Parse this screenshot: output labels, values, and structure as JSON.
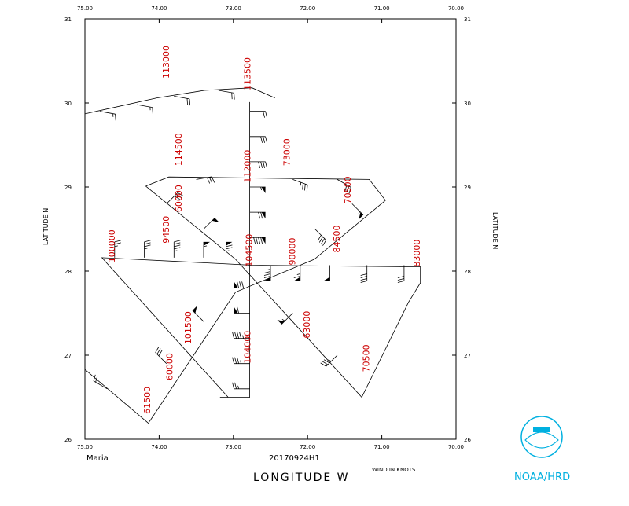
{
  "chart_data": {
    "type": "wind-barbs",
    "title": "Maria",
    "subtitle": "20170924H1",
    "xlabel": "LONGITUDE  W",
    "ylabel": "LATITUDE  N",
    "units_label": "WIND IN KNOTS",
    "credit": "NOAA/HRD",
    "color": "#000000",
    "label_color": "#cc0000",
    "credit_color": "#00b0e0",
    "xlim": [
      75,
      70
    ],
    "ylim": [
      26,
      31
    ],
    "xticks": [
      {
        "value": 75,
        "label": "75.00"
      },
      {
        "value": 74,
        "label": "74.00"
      },
      {
        "value": 73,
        "label": "73.00"
      },
      {
        "value": 72,
        "label": "72.00"
      },
      {
        "value": 71,
        "label": "71.00"
      },
      {
        "value": 70,
        "label": "70.00"
      }
    ],
    "yticks": [
      26,
      27,
      28,
      29,
      30,
      31
    ],
    "track": [
      [
        75.0,
        29.87
      ],
      [
        74.03,
        30.06
      ],
      [
        73.39,
        30.15
      ],
      [
        72.75,
        30.18
      ],
      [
        72.44,
        30.06
      ],
      null,
      [
        72.78,
        30.01
      ],
      [
        72.78,
        26.5
      ],
      [
        73.18,
        26.5
      ],
      null,
      [
        74.18,
        29.01
      ],
      [
        73.87,
        29.12
      ],
      [
        71.17,
        29.09
      ],
      [
        70.95,
        28.84
      ],
      null,
      [
        74.18,
        29.01
      ],
      [
        72.97,
        28.14
      ],
      [
        71.27,
        26.5
      ],
      [
        70.64,
        27.63
      ],
      [
        70.48,
        27.86
      ],
      [
        70.48,
        28.05
      ],
      [
        72.75,
        28.07
      ],
      [
        74.77,
        28.16
      ],
      [
        74.66,
        28.05
      ],
      [
        73.07,
        26.5
      ],
      null,
      [
        74.13,
        26.21
      ],
      [
        72.97,
        27.75
      ],
      [
        71.91,
        28.14
      ],
      [
        70.95,
        28.84
      ],
      null,
      [
        75.0,
        26.83
      ],
      [
        74.13,
        26.18
      ]
    ],
    "barbs": [
      [
        72.78,
        29.9,
        90,
        20
      ],
      [
        72.78,
        29.6,
        90,
        30
      ],
      [
        72.78,
        29.3,
        90,
        40
      ],
      [
        72.78,
        29.0,
        90,
        55
      ],
      [
        72.78,
        28.7,
        90,
        70
      ],
      [
        72.78,
        28.4,
        90,
        90
      ],
      [
        72.78,
        26.6,
        270,
        25
      ],
      [
        72.78,
        26.9,
        270,
        35
      ],
      [
        72.78,
        27.2,
        270,
        45
      ],
      [
        72.78,
        27.5,
        270,
        60
      ],
      [
        72.78,
        27.8,
        270,
        80
      ],
      [
        72.5,
        28.07,
        180,
        85
      ],
      [
        72.1,
        28.07,
        180,
        65
      ],
      [
        71.7,
        28.07,
        180,
        50
      ],
      [
        71.2,
        28.07,
        180,
        40
      ],
      [
        70.7,
        28.07,
        180,
        30
      ],
      [
        74.6,
        28.16,
        0,
        25
      ],
      [
        74.2,
        28.16,
        0,
        35
      ],
      [
        73.8,
        28.16,
        0,
        45
      ],
      [
        73.4,
        28.16,
        0,
        55
      ],
      [
        73.1,
        28.16,
        0,
        75
      ],
      [
        74.8,
        29.9,
        100,
        15
      ],
      [
        74.3,
        29.98,
        100,
        15
      ],
      [
        73.8,
        30.08,
        100,
        20
      ],
      [
        73.2,
        30.15,
        100,
        20
      ],
      [
        71.9,
        28.5,
        135,
        40
      ],
      [
        71.4,
        28.8,
        135,
        55
      ],
      [
        72.2,
        27.5,
        225,
        55
      ],
      [
        71.6,
        27.0,
        225,
        35
      ],
      [
        73.4,
        27.4,
        315,
        50
      ],
      [
        73.9,
        26.9,
        315,
        30
      ],
      [
        74.7,
        26.6,
        300,
        20
      ],
      [
        73.4,
        28.5,
        45,
        50
      ],
      [
        73.9,
        28.8,
        45,
        30
      ],
      [
        73.5,
        29.09,
        80,
        30
      ],
      [
        72.2,
        29.09,
        110,
        35
      ],
      [
        71.6,
        29.09,
        120,
        30
      ]
    ],
    "time_labels": [
      {
        "text": "113000",
        "lon": 73.9,
        "lat": 30.29
      },
      {
        "text": "113500",
        "lon": 72.8,
        "lat": 30.15
      },
      {
        "text": "114500",
        "lon": 73.73,
        "lat": 29.25
      },
      {
        "text": "73000",
        "lon": 72.27,
        "lat": 29.25
      },
      {
        "text": "112000",
        "lon": 72.8,
        "lat": 29.05
      },
      {
        "text": "70500",
        "lon": 71.45,
        "lat": 28.8
      },
      {
        "text": "60000",
        "lon": 73.73,
        "lat": 28.7
      },
      {
        "text": "94500",
        "lon": 73.9,
        "lat": 28.33
      },
      {
        "text": "100000",
        "lon": 74.63,
        "lat": 28.1
      },
      {
        "text": "104500",
        "lon": 72.78,
        "lat": 28.05
      },
      {
        "text": "90000",
        "lon": 72.2,
        "lat": 28.07
      },
      {
        "text": "84500",
        "lon": 71.6,
        "lat": 28.22
      },
      {
        "text": "83000",
        "lon": 70.52,
        "lat": 28.05
      },
      {
        "text": "63000",
        "lon": 72.0,
        "lat": 27.2
      },
      {
        "text": "101500",
        "lon": 73.6,
        "lat": 27.13
      },
      {
        "text": "104000",
        "lon": 72.8,
        "lat": 26.9
      },
      {
        "text": "70500",
        "lon": 71.2,
        "lat": 26.8
      },
      {
        "text": "60000",
        "lon": 73.85,
        "lat": 26.7
      },
      {
        "text": "61500",
        "lon": 74.15,
        "lat": 26.3
      }
    ]
  }
}
